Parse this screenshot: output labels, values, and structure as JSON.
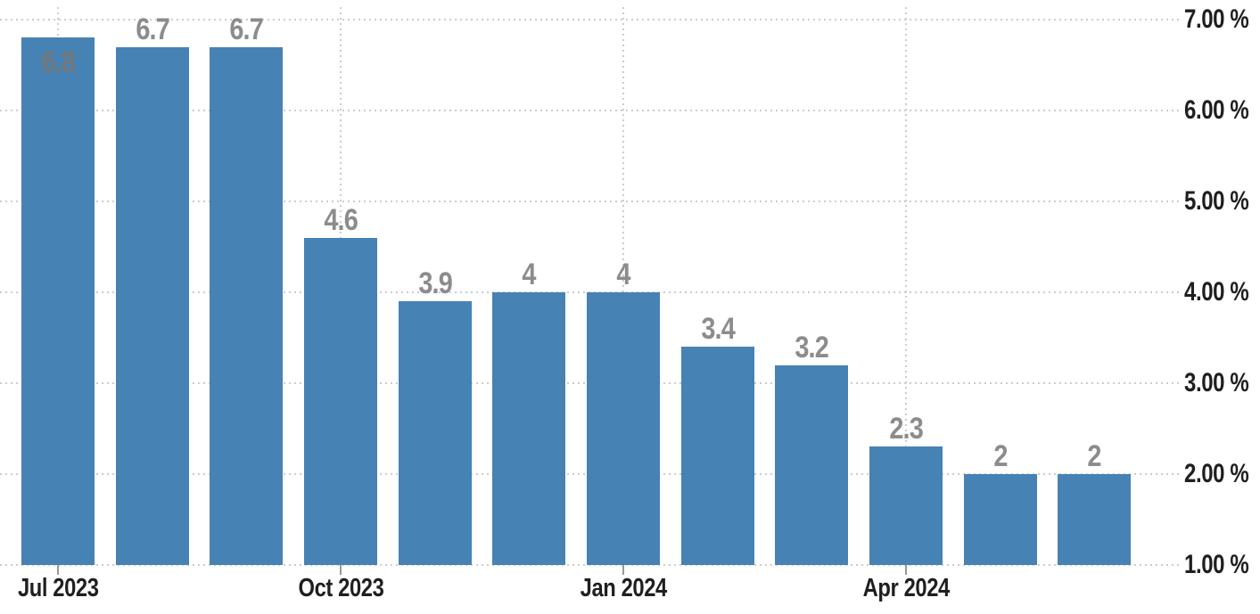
{
  "chart_data": {
    "type": "bar",
    "title": "",
    "values": [
      6.8,
      6.7,
      6.7,
      4.6,
      3.9,
      4,
      4,
      3.4,
      3.2,
      2.3,
      2,
      2
    ],
    "bar_labels": [
      "6.8",
      "6.7",
      "6.7",
      "4.6",
      "3.9",
      "4",
      "4",
      "3.4",
      "3.2",
      "2.3",
      "2",
      "2"
    ],
    "x_ticks": [
      {
        "bar_index": 0,
        "label": "Jul 2023"
      },
      {
        "bar_index": 3,
        "label": "Oct 2023"
      },
      {
        "bar_index": 6,
        "label": "Jan 2024"
      },
      {
        "bar_index": 9,
        "label": "Apr 2024"
      }
    ],
    "y_ticks": [
      {
        "value": 7,
        "label": "7.00 %"
      },
      {
        "value": 6,
        "label": "6.00 %"
      },
      {
        "value": 5,
        "label": "5.00 %"
      },
      {
        "value": 4,
        "label": "4.00 %"
      },
      {
        "value": 3,
        "label": "3.00 %"
      },
      {
        "value": 2,
        "label": "2.00 %"
      },
      {
        "value": 1,
        "label": "1.00 %"
      }
    ],
    "ylim": [
      1,
      7.2
    ],
    "y_axis_side": "right",
    "grid": "dotted",
    "legend": "none",
    "colors": {
      "bar": "#4682b4",
      "bar_label": "#8c8c8c",
      "bar_label_inside": "#74787a",
      "axis_text": "#1f1f1f",
      "grid_line": "#cccccc",
      "tick": "#999999",
      "background": "#ffffff"
    }
  }
}
